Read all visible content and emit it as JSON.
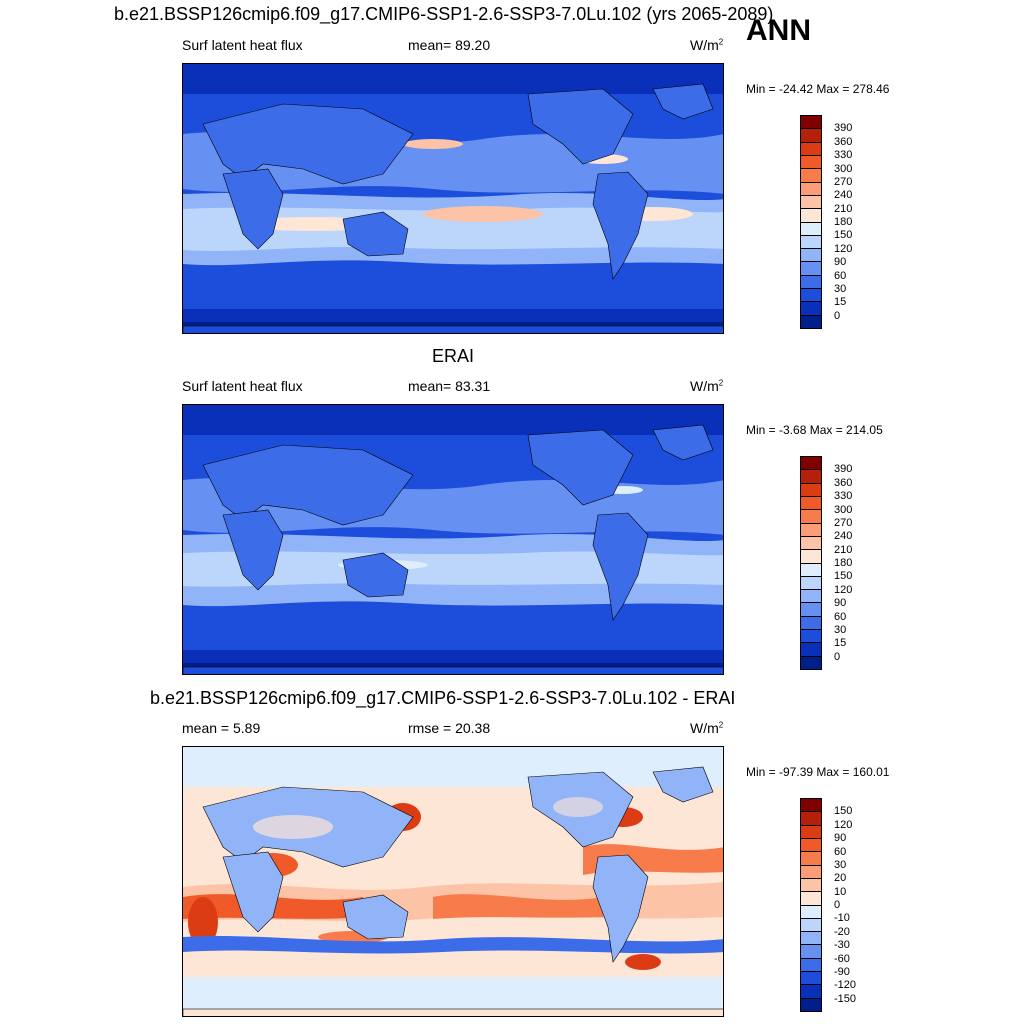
{
  "season": "ANN",
  "panels": [
    {
      "title": "b.e21.BSSP126cmip6.f09_g17.CMIP6-SSP1-2.6-SSP3-7.0Lu.102 (yrs 2065-2089)",
      "left_label": "Surf latent heat flux",
      "center_label": "mean=  89.20",
      "units": "W/m",
      "units_sup": "2",
      "minmax": "Min = -24.42 Max = 278.46",
      "colorbar_labels": [
        "390",
        "360",
        "330",
        "300",
        "270",
        "240",
        "210",
        "180",
        "150",
        "120",
        "90",
        "60",
        "30",
        "15",
        "0"
      ],
      "colorbar_colors": [
        "#800000",
        "#b4200a",
        "#dc3c14",
        "#f05a28",
        "#f77b4b",
        "#fb9e78",
        "#fdc3a6",
        "#fee6d7",
        "#dfeefc",
        "#bcd6fb",
        "#91b3f7",
        "#6690f2",
        "#3d6ce8",
        "#1d4ddb",
        "#0a2fb8",
        "#001f8a"
      ]
    },
    {
      "title": "ERAI",
      "left_label": "Surf latent heat flux",
      "center_label": "mean=  83.31",
      "units": "W/m",
      "units_sup": "2",
      "minmax": "Min =  -3.68 Max = 214.05",
      "colorbar_labels": [
        "390",
        "360",
        "330",
        "300",
        "270",
        "240",
        "210",
        "180",
        "150",
        "120",
        "90",
        "60",
        "30",
        "15",
        "0"
      ],
      "colorbar_colors": [
        "#800000",
        "#b4200a",
        "#dc3c14",
        "#f05a28",
        "#f77b4b",
        "#fb9e78",
        "#fdc3a6",
        "#fee6d7",
        "#dfeefc",
        "#bcd6fb",
        "#91b3f7",
        "#6690f2",
        "#3d6ce8",
        "#1d4ddb",
        "#0a2fb8",
        "#001f8a"
      ]
    },
    {
      "title": "b.e21.BSSP126cmip6.f09_g17.CMIP6-SSP1-2.6-SSP3-7.0Lu.102 - ERAI",
      "left_label": "mean =   5.89",
      "center_label": "rmse =  20.38",
      "units": "W/m",
      "units_sup": "2",
      "minmax": "Min = -97.39 Max = 160.01",
      "colorbar_labels": [
        "150",
        "120",
        "90",
        "60",
        "30",
        "20",
        "10",
        "0",
        "-10",
        "-20",
        "-30",
        "-60",
        "-90",
        "-120",
        "-150"
      ],
      "colorbar_colors": [
        "#800000",
        "#b4200a",
        "#dc3c14",
        "#f05a28",
        "#f77b4b",
        "#fb9e78",
        "#fdc3a6",
        "#fee6d7",
        "#dfeefc",
        "#bcd6fb",
        "#91b3f7",
        "#6690f2",
        "#3d6ce8",
        "#1d4ddb",
        "#0a2fb8",
        "#001f8a"
      ]
    }
  ]
}
